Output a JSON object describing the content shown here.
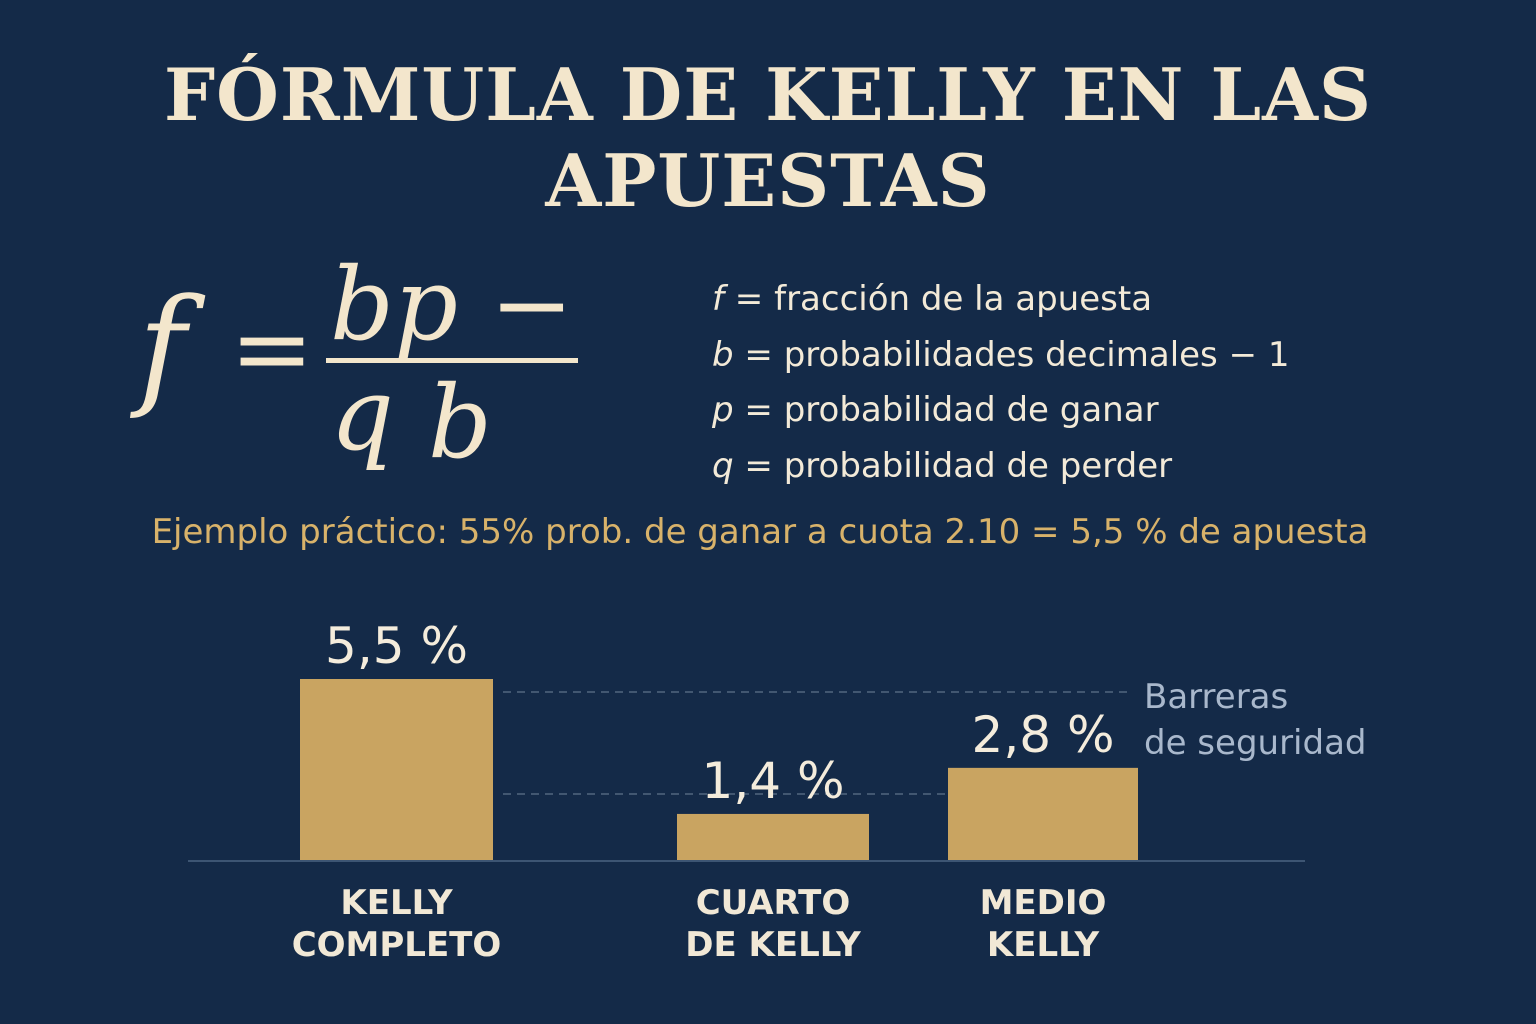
{
  "title": "FÓRMULA DE KELLY EN LAS APUESTAS",
  "formula": {
    "lhs": "f",
    "equals": "=",
    "numerator": "bp − q",
    "denominator": "b"
  },
  "definitions": [
    {
      "symbol": "f",
      "text": "= fracción de la apuesta"
    },
    {
      "symbol": "b",
      "text": "= probabilidades decimales − 1"
    },
    {
      "symbol": "p",
      "text": "= probabilidad de ganar"
    },
    {
      "symbol": "q",
      "text": "= probabilidad de perder"
    }
  ],
  "example": "Ejemplo práctico: 55% prob. de ganar a cuota 2.10 = 5,5 % de apuesta",
  "annotation": "Barreras\nde seguridad",
  "colors": {
    "background": "#142a48",
    "bar": "#c9a461",
    "accent_text": "#d8b26a"
  },
  "chart_data": {
    "type": "bar",
    "categories": [
      "KELLY\nCOMPLETO",
      "CUARTO\nDE KELLY",
      "MEDIO\nKELLY"
    ],
    "values": [
      5.5,
      1.4,
      2.8
    ],
    "data_labels": [
      "5,5 %",
      "1,4 %",
      "2,8 %"
    ],
    "title": "",
    "xlabel": "",
    "ylabel": "",
    "grid": false,
    "axes_visible": false
  }
}
